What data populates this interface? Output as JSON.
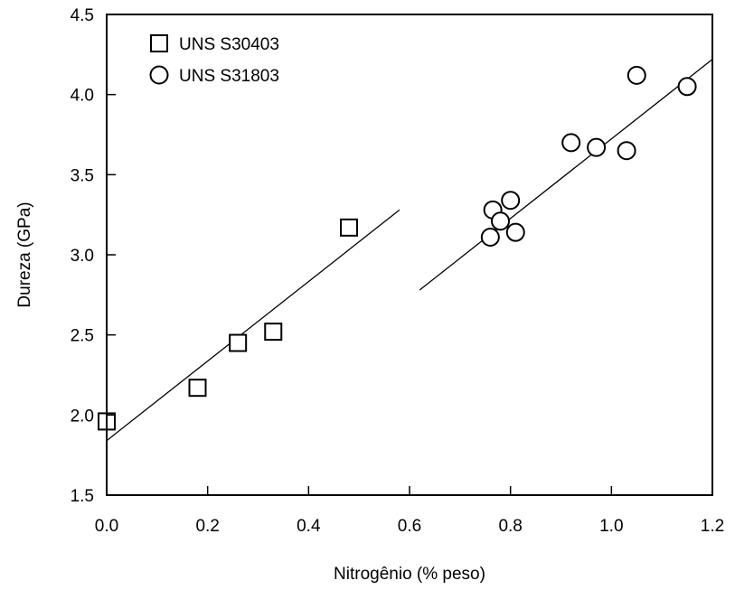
{
  "chart_data": {
    "type": "scatter",
    "xlabel": "Nitrogênio (% peso)",
    "ylabel": "Dureza (GPa)",
    "xlim": [
      0.0,
      1.2
    ],
    "ylim": [
      1.5,
      4.5
    ],
    "xticks": [
      "0.0",
      "0.2",
      "0.4",
      "0.6",
      "0.8",
      "1.0",
      "1.2"
    ],
    "yticks": [
      "1.5",
      "2.0",
      "2.5",
      "3.0",
      "3.5",
      "4.0",
      "4.5"
    ],
    "grid": false,
    "legend_position": "top-left",
    "series": [
      {
        "name": "UNS S30403",
        "marker": "square",
        "x": [
          0.0,
          0.18,
          0.26,
          0.33,
          0.48
        ],
        "y": [
          1.96,
          2.17,
          2.45,
          2.52,
          3.17
        ],
        "trendline": {
          "x": [
            0.0,
            0.58
          ],
          "y": [
            1.84,
            3.28
          ]
        }
      },
      {
        "name": "UNS S31803",
        "marker": "circle",
        "x": [
          0.76,
          0.765,
          0.78,
          0.8,
          0.81,
          0.92,
          0.97,
          1.03,
          1.05,
          1.15
        ],
        "y": [
          3.11,
          3.28,
          3.21,
          3.34,
          3.14,
          3.7,
          3.67,
          3.65,
          4.12,
          4.05
        ],
        "trendline": {
          "x": [
            0.62,
            1.2
          ],
          "y": [
            2.78,
            4.22
          ]
        }
      }
    ],
    "colors": {
      "marker_stroke": "#000000",
      "marker_fill": "#ffffff",
      "line": "#000000"
    }
  }
}
